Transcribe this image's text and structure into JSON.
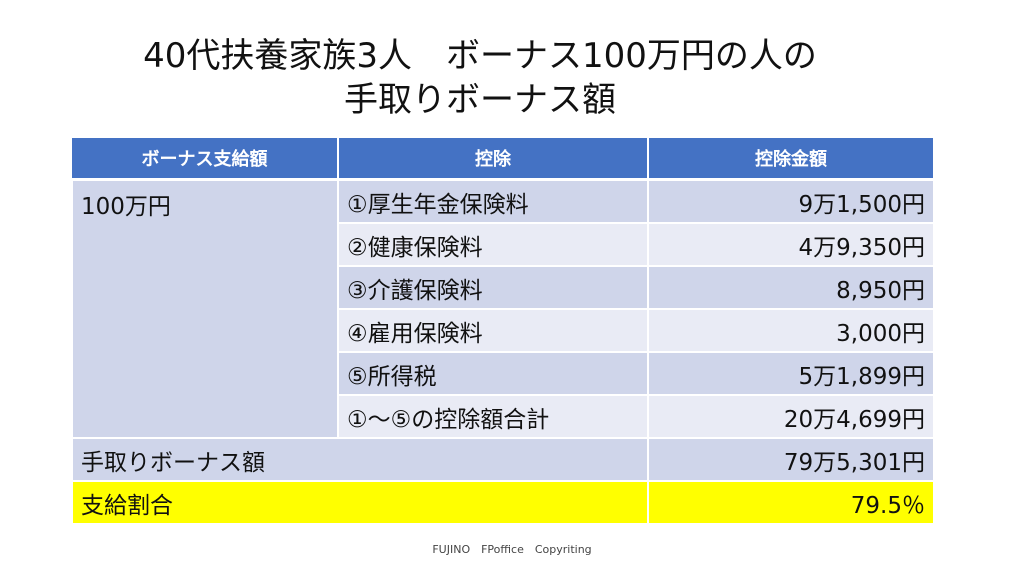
{
  "title": {
    "line1": "40代扶養家族3人　ボーナス100万円の人の",
    "line2": "手取りボーナス額"
  },
  "table": {
    "headers": [
      "ボーナス支給額",
      "控除",
      "控除金額"
    ],
    "bonus_amount": "100万円",
    "deductions": [
      {
        "label": "①厚生年金保険料",
        "amount": "9万1,500円"
      },
      {
        "label": "②健康保険料",
        "amount": "4万9,350円"
      },
      {
        "label": "③介護保険料",
        "amount": "8,950円"
      },
      {
        "label": "④雇用保険料",
        "amount": "3,000円"
      },
      {
        "label": "⑤所得税",
        "amount": "5万1,899円"
      },
      {
        "label": "①～⑤の控除額合計",
        "amount": "20万4,699円"
      }
    ],
    "net": {
      "label": "手取りボーナス額",
      "amount": "79万5,301円"
    },
    "ratio": {
      "label": "支給割合",
      "value": "79.5％"
    }
  },
  "colors": {
    "header": "#4472c4",
    "row_dark": "#cfd5ea",
    "row_light": "#e9ebf5",
    "highlight": "#ffff00"
  },
  "footer": "FUJINO　FPoffice　Copyriting"
}
